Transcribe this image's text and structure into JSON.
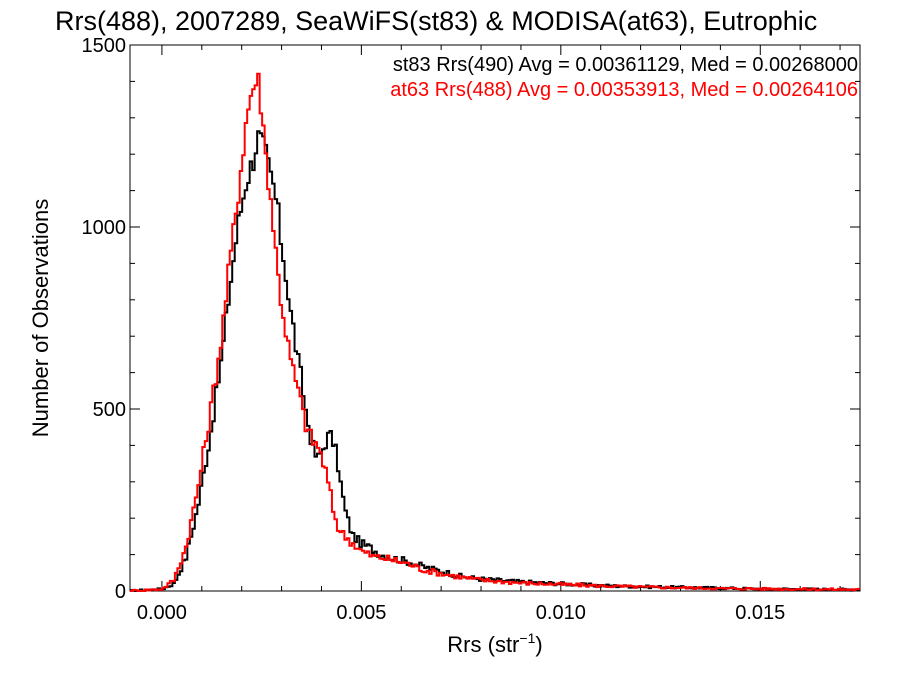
{
  "chart_data": {
    "type": "line",
    "title": "Rrs(488), 2007289, SeaWiFS(st83) & MODISA(at63), Eutrophic",
    "xlabel_main": "Rrs (str",
    "xlabel_sup": "−1",
    "xlabel_close": ")",
    "ylabel": "Number of Observations",
    "xlim": [
      -0.0008,
      0.0175
    ],
    "ylim": [
      0,
      1500
    ],
    "x_ticks": [
      0.0,
      0.005,
      0.01,
      0.015
    ],
    "x_tick_labels": [
      "0.000",
      "0.005",
      "0.010",
      "0.015"
    ],
    "y_ticks": [
      0,
      500,
      1000,
      1500
    ],
    "y_tick_labels": [
      "0",
      "500",
      "1000",
      "1500"
    ],
    "grid": false,
    "legend_position": "top-right",
    "series": [
      {
        "name": "st83 Rrs(490) Avg = 0.00361129, Med = 0.00268000",
        "color": "#000000",
        "points": [
          [
            -0.0008,
            0
          ],
          [
            0.0,
            5
          ],
          [
            0.0003,
            20
          ],
          [
            0.0006,
            90
          ],
          [
            0.0009,
            230
          ],
          [
            0.0012,
            420
          ],
          [
            0.0015,
            640
          ],
          [
            0.0017,
            830
          ],
          [
            0.0019,
            1000
          ],
          [
            0.0021,
            1120
          ],
          [
            0.0023,
            1190
          ],
          [
            0.0024,
            1250
          ],
          [
            0.0025,
            1230
          ],
          [
            0.0026,
            1200
          ],
          [
            0.0027,
            1150
          ],
          [
            0.0028,
            1110
          ],
          [
            0.0029,
            1050
          ],
          [
            0.003,
            950
          ],
          [
            0.0031,
            880
          ],
          [
            0.0032,
            780
          ],
          [
            0.0033,
            720
          ],
          [
            0.0034,
            640
          ],
          [
            0.0035,
            580
          ],
          [
            0.0036,
            500
          ],
          [
            0.0037,
            440
          ],
          [
            0.0038,
            390
          ],
          [
            0.0039,
            360
          ],
          [
            0.004,
            380
          ],
          [
            0.0041,
            410
          ],
          [
            0.0042,
            430
          ],
          [
            0.0043,
            410
          ],
          [
            0.0044,
            360
          ],
          [
            0.0045,
            280
          ],
          [
            0.0046,
            220
          ],
          [
            0.0047,
            180
          ],
          [
            0.0048,
            150
          ],
          [
            0.005,
            130
          ],
          [
            0.0052,
            120
          ],
          [
            0.0055,
            100
          ],
          [
            0.0058,
            90
          ],
          [
            0.0062,
            80
          ],
          [
            0.0066,
            65
          ],
          [
            0.007,
            55
          ],
          [
            0.0075,
            40
          ],
          [
            0.008,
            33
          ],
          [
            0.009,
            25
          ],
          [
            0.01,
            20
          ],
          [
            0.011,
            15
          ],
          [
            0.012,
            12
          ],
          [
            0.013,
            10
          ],
          [
            0.014,
            8
          ],
          [
            0.015,
            6
          ],
          [
            0.016,
            5
          ],
          [
            0.0175,
            4
          ]
        ]
      },
      {
        "name": "at63 Rrs(488) Avg = 0.00353913, Med = 0.00264106",
        "color": "#ff0000",
        "points": [
          [
            -0.0008,
            0
          ],
          [
            0.0,
            5
          ],
          [
            0.0003,
            30
          ],
          [
            0.0006,
            120
          ],
          [
            0.0009,
            280
          ],
          [
            0.0012,
            480
          ],
          [
            0.0015,
            700
          ],
          [
            0.0017,
            900
          ],
          [
            0.0019,
            1080
          ],
          [
            0.002,
            1180
          ],
          [
            0.0021,
            1280
          ],
          [
            0.0022,
            1350
          ],
          [
            0.0023,
            1390
          ],
          [
            0.0024,
            1410
          ],
          [
            0.0025,
            1330
          ],
          [
            0.0026,
            1200
          ],
          [
            0.0027,
            1110
          ],
          [
            0.0028,
            1000
          ],
          [
            0.0029,
            880
          ],
          [
            0.003,
            790
          ],
          [
            0.0031,
            720
          ],
          [
            0.0032,
            650
          ],
          [
            0.0033,
            600
          ],
          [
            0.0034,
            560
          ],
          [
            0.0035,
            510
          ],
          [
            0.0036,
            460
          ],
          [
            0.0037,
            430
          ],
          [
            0.0038,
            410
          ],
          [
            0.0039,
            400
          ],
          [
            0.004,
            370
          ],
          [
            0.0041,
            330
          ],
          [
            0.0042,
            280
          ],
          [
            0.0043,
            220
          ],
          [
            0.0044,
            180
          ],
          [
            0.0045,
            160
          ],
          [
            0.0046,
            150
          ],
          [
            0.0048,
            130
          ],
          [
            0.005,
            110
          ],
          [
            0.0053,
            95
          ],
          [
            0.0056,
            90
          ],
          [
            0.006,
            80
          ],
          [
            0.0063,
            70
          ],
          [
            0.0065,
            60
          ],
          [
            0.007,
            48
          ],
          [
            0.0075,
            38
          ],
          [
            0.008,
            30
          ],
          [
            0.009,
            22
          ],
          [
            0.01,
            18
          ],
          [
            0.011,
            14
          ],
          [
            0.012,
            11
          ],
          [
            0.013,
            9
          ],
          [
            0.014,
            7
          ],
          [
            0.015,
            6
          ],
          [
            0.016,
            5
          ],
          [
            0.0175,
            4
          ]
        ]
      }
    ]
  }
}
